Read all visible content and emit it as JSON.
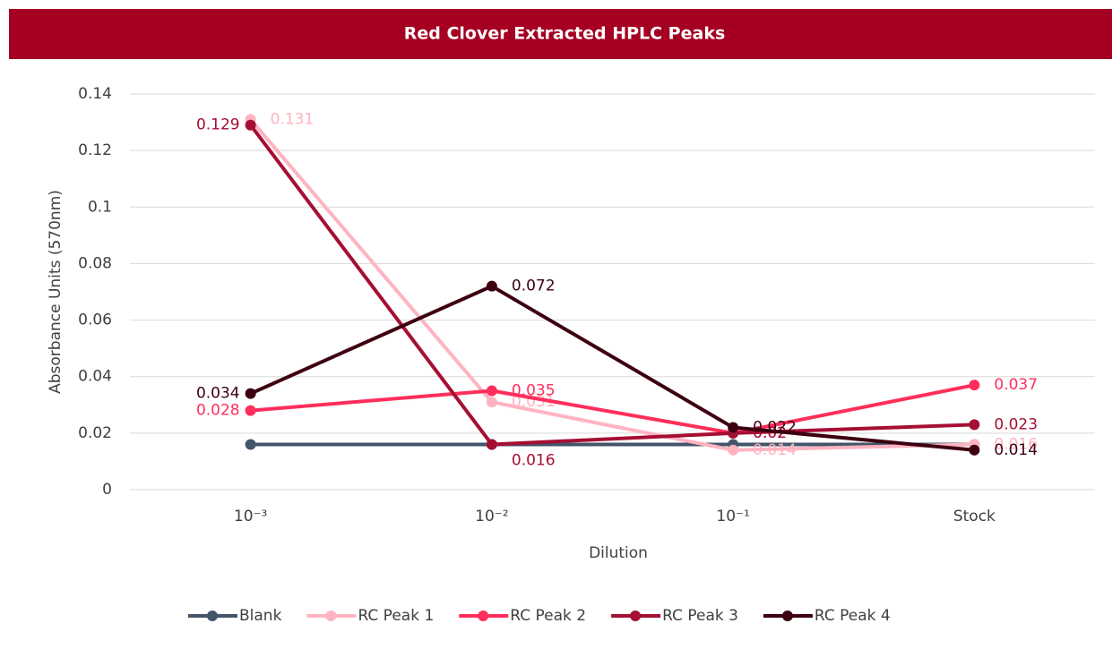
{
  "chart_data": {
    "type": "line",
    "title": "Red Clover Extracted HPLC Peaks",
    "x_label": "Dilution",
    "y_label": "Absorbance Units (570nm)",
    "categories": [
      "10⁻³",
      "10⁻²",
      "10⁻¹",
      "Stock"
    ],
    "ylim": [
      0,
      0.14
    ],
    "yticks": [
      0,
      0.02,
      0.04,
      0.06,
      0.08,
      0.1,
      0.12,
      0.14
    ],
    "grid": true,
    "legend": "bottom",
    "series": [
      {
        "name": "Blank",
        "color": "#44546a",
        "values": [
          0.016,
          0.016,
          0.016,
          0.016
        ],
        "data_labels": false
      },
      {
        "name": "RC Peak 1",
        "color": "#ffb3c1",
        "values": [
          0.131,
          0.031,
          0.014,
          0.016
        ],
        "data_labels": true
      },
      {
        "name": "RC Peak 2",
        "color": "#ff2e5b",
        "values": [
          0.028,
          0.035,
          0.02,
          0.037
        ],
        "data_labels": true
      },
      {
        "name": "RC Peak 3",
        "color": "#a50f33",
        "values": [
          0.129,
          0.016,
          0.02,
          0.023
        ],
        "data_labels": true
      },
      {
        "name": "RC Peak 4",
        "color": "#3d0010",
        "values": [
          0.034,
          0.072,
          0.022,
          0.014
        ],
        "data_labels": true
      }
    ]
  }
}
